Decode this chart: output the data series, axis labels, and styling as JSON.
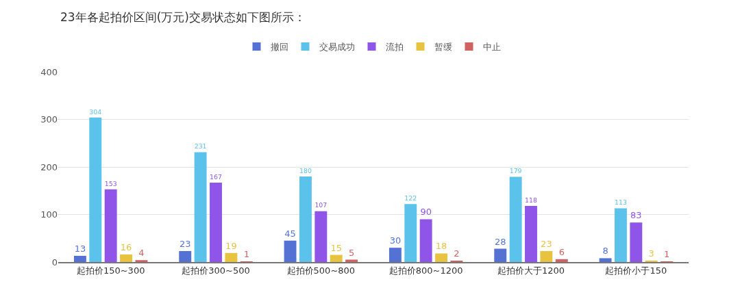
{
  "chart_data": {
    "type": "bar",
    "title": "23年各起拍价区间(万元)交易状态如下图所示：",
    "categories": [
      "起拍价150~300",
      "起拍价300~500",
      "起拍价500~800",
      "起拍价800~1200",
      "起拍价大于1200",
      "起拍价小于150"
    ],
    "series": [
      {
        "name": "撤回",
        "color": "#5372d4",
        "values": [
          13,
          23,
          45,
          30,
          28,
          8
        ]
      },
      {
        "name": "交易成功",
        "color": "#5bc2ec",
        "values": [
          304,
          231,
          180,
          122,
          179,
          113
        ]
      },
      {
        "name": "流拍",
        "color": "#8f55e8",
        "values": [
          153,
          167,
          107,
          90,
          118,
          83
        ]
      },
      {
        "name": "暂缓",
        "color": "#e8c340",
        "values": [
          16,
          19,
          15,
          18,
          23,
          3
        ]
      },
      {
        "name": "中止",
        "color": "#d0625f",
        "values": [
          4,
          1,
          5,
          2,
          6,
          1
        ]
      }
    ],
    "ylim": [
      0,
      400
    ],
    "yticks": [
      0,
      100,
      200,
      300,
      400
    ],
    "grid": "y",
    "legend": "top",
    "data_labels": true
  }
}
